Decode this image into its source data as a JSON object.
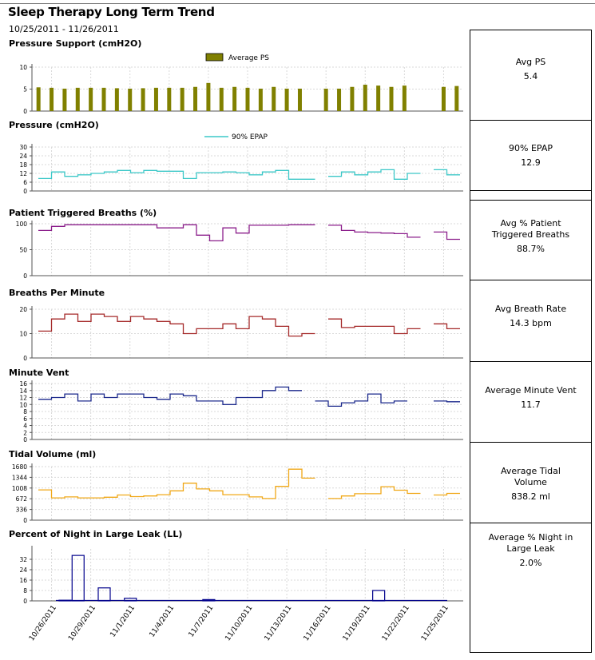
{
  "report": {
    "title": "Sleep Therapy Long Term Trend",
    "date_range": "10/25/2011 - 11/26/2011"
  },
  "summary": [
    {
      "label": "Avg PS",
      "value": "5.4"
    },
    {
      "label": "90% EPAP",
      "value": "12.9"
    },
    {
      "label": "Avg % Patient Triggered Breaths",
      "value": "88.7%"
    },
    {
      "label": "Avg Breath Rate",
      "value": "14.3 bpm"
    },
    {
      "label": "Average Minute Vent",
      "value": "11.7"
    },
    {
      "label": "Average Tidal Volume",
      "value": "838.2 ml"
    },
    {
      "label": "Average % Night in Large Leak",
      "value": "2.0%"
    }
  ],
  "x_tick_labels": [
    "10/26/2011",
    "10/29/2011",
    "11/1/2011",
    "11/4/2011",
    "11/7/2011",
    "11/10/2011",
    "11/13/2011",
    "11/16/2011",
    "11/19/2011",
    "11/22/2011",
    "11/25/2011"
  ],
  "colors": {
    "ps": "#808000",
    "epap": "#3cc8c8",
    "triggered": "#8b1e8b",
    "rate": "#a52a2a",
    "minute_vent": "#1c2a8c",
    "tidal": "#f0a818",
    "leak": "#00008b"
  },
  "chart_data": [
    {
      "type": "bar",
      "title": "Pressure Support (cmH2O)",
      "ylim": [
        0,
        10
      ],
      "yticks": [
        0,
        5,
        10
      ],
      "legend": "top-center",
      "series": [
        {
          "name": "Average PS",
          "values": [
            5.4,
            5.3,
            5.1,
            5.3,
            5.3,
            5.3,
            5.2,
            5.1,
            5.2,
            5.3,
            5.3,
            5.3,
            5.5,
            6.4,
            5.3,
            5.5,
            5.3,
            5.1,
            5.5,
            5.1,
            5.1,
            null,
            5.1,
            5.1,
            5.5,
            6.0,
            5.8,
            5.5,
            5.8,
            null,
            null,
            5.5,
            5.7
          ]
        }
      ]
    },
    {
      "type": "line",
      "title": "Pressure (cmH2O)",
      "ylim": [
        0,
        30
      ],
      "yticks": [
        0,
        6,
        12,
        18,
        24,
        30
      ],
      "legend": "top-center",
      "series": [
        {
          "name": "90% EPAP",
          "values": [
            8.5,
            13,
            10,
            11,
            12,
            13,
            14,
            12.5,
            14,
            13.5,
            13.5,
            8.5,
            12.5,
            12.5,
            13,
            12.5,
            11,
            13,
            14,
            8,
            8,
            null,
            10,
            13,
            11,
            13,
            14.5,
            8,
            12,
            null,
            14.5,
            11
          ]
        }
      ]
    },
    {
      "type": "line",
      "title": "Patient Triggered Breaths (%)",
      "ylim": [
        0,
        100
      ],
      "yticks": [
        0,
        50,
        100
      ],
      "series": [
        {
          "name": "",
          "values": [
            87,
            95,
            98,
            98,
            98,
            98,
            98,
            98,
            98,
            92,
            92,
            98,
            78,
            67,
            92,
            82,
            97,
            97,
            97,
            98,
            98,
            null,
            97,
            87,
            84,
            83,
            82,
            81,
            74,
            null,
            84,
            70
          ]
        }
      ]
    },
    {
      "type": "line",
      "title": "Breaths Per Minute",
      "ylim": [
        0,
        20
      ],
      "yticks": [
        0,
        10,
        20
      ],
      "series": [
        {
          "name": "",
          "values": [
            11,
            16,
            18,
            15,
            18,
            17,
            15,
            17,
            16,
            15,
            14,
            10,
            12,
            12,
            14,
            12,
            17,
            16,
            13,
            9,
            10,
            null,
            16,
            12.5,
            13,
            13,
            13,
            10,
            12,
            null,
            14,
            12
          ]
        }
      ]
    },
    {
      "type": "line",
      "title": "Minute Vent",
      "ylim": [
        0,
        16
      ],
      "yticks": [
        0,
        2,
        4,
        6,
        8,
        10,
        12,
        14,
        16
      ],
      "series": [
        {
          "name": "",
          "values": [
            11.5,
            12,
            13,
            11,
            13,
            12,
            13,
            13,
            12,
            11.5,
            13,
            12.5,
            11,
            11,
            10,
            12,
            12,
            14,
            15,
            14,
            null,
            11,
            9.5,
            10.5,
            11,
            13,
            10.5,
            11,
            null,
            null,
            11,
            10.8
          ]
        }
      ]
    },
    {
      "type": "line",
      "title": "Tidal Volume (ml)",
      "ylim": [
        0,
        1680
      ],
      "yticks": [
        0,
        336,
        672,
        1008,
        1344,
        1680
      ],
      "series": [
        {
          "name": "",
          "values": [
            950,
            700,
            730,
            700,
            700,
            720,
            790,
            740,
            760,
            800,
            920,
            1160,
            980,
            920,
            800,
            800,
            730,
            680,
            1060,
            1600,
            1320,
            null,
            680,
            760,
            830,
            830,
            1050,
            940,
            840,
            null,
            790,
            840
          ]
        }
      ]
    },
    {
      "type": "bar",
      "title": "Percent of Night in Large Leak (LL)",
      "ylim": [
        0,
        40
      ],
      "yticks": [
        0,
        8,
        16,
        24,
        32
      ],
      "series": [
        {
          "name": "",
          "values": [
            0,
            0,
            0.5,
            35,
            0,
            10,
            0,
            2,
            0,
            0,
            0,
            0,
            0,
            1,
            0,
            0,
            0,
            0,
            0,
            0,
            0,
            0,
            0,
            0,
            0,
            0,
            8,
            0,
            0,
            0,
            0,
            0,
            0
          ]
        }
      ]
    }
  ]
}
